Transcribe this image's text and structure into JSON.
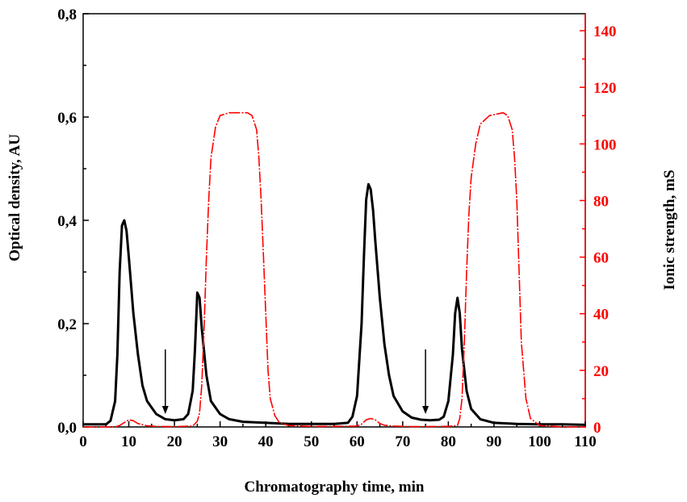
{
  "chart_data": {
    "type": "line",
    "title": "",
    "xlabel": "Chromatography time, min",
    "ylabel_left": "Optical density, AU",
    "ylabel_right": "Ionic strength,  mS",
    "xlim": [
      0,
      110
    ],
    "ylim_left": [
      0,
      0.8
    ],
    "ylim_right": [
      0,
      146
    ],
    "x_ticks": [
      "0",
      "10",
      "20",
      "30",
      "40",
      "50",
      "60",
      "70",
      "80",
      "90",
      "100",
      "110"
    ],
    "y_left_ticks": [
      "0,0",
      "0,2",
      "0,4",
      "0,6",
      "0,8"
    ],
    "y_right_ticks": [
      "0",
      "20",
      "40",
      "60",
      "80",
      "100",
      "120",
      "140"
    ],
    "grid": false,
    "series": [
      {
        "axis": "left",
        "color": "#000000",
        "x": [
          0,
          5,
          6,
          7,
          7.5,
          8,
          8.5,
          9,
          9.5,
          10,
          11,
          12,
          13,
          14,
          16,
          18,
          20,
          22,
          23,
          24,
          24.5,
          25,
          25.5,
          26,
          27,
          28,
          30,
          32,
          35,
          40,
          45,
          50,
          55,
          58,
          59,
          60,
          61,
          61.5,
          62,
          62.5,
          63,
          63.5,
          64,
          65,
          66,
          67,
          68,
          70,
          72,
          74,
          76,
          78,
          79,
          80,
          81,
          81.5,
          82,
          82.5,
          83,
          84,
          85,
          87,
          90,
          95,
          100,
          105,
          110
        ],
        "values": [
          0.005,
          0.005,
          0.012,
          0.05,
          0.14,
          0.3,
          0.39,
          0.4,
          0.38,
          0.33,
          0.22,
          0.14,
          0.08,
          0.05,
          0.025,
          0.015,
          0.013,
          0.015,
          0.025,
          0.07,
          0.15,
          0.26,
          0.25,
          0.19,
          0.1,
          0.05,
          0.025,
          0.015,
          0.01,
          0.008,
          0.006,
          0.006,
          0.006,
          0.008,
          0.02,
          0.06,
          0.2,
          0.33,
          0.44,
          0.47,
          0.46,
          0.42,
          0.36,
          0.25,
          0.16,
          0.1,
          0.06,
          0.03,
          0.018,
          0.014,
          0.013,
          0.014,
          0.02,
          0.05,
          0.14,
          0.22,
          0.25,
          0.22,
          0.15,
          0.07,
          0.035,
          0.015,
          0.008,
          0.006,
          0.005,
          0.005,
          0.004
        ]
      },
      {
        "axis": "right",
        "color": "#ff0000",
        "x": [
          0,
          7,
          8,
          9,
          10,
          11,
          12,
          14,
          16,
          20,
          24,
          25,
          25.5,
          26,
          26.5,
          27,
          27.5,
          28,
          29,
          30,
          32,
          36,
          37,
          38,
          38.5,
          39,
          39.5,
          40,
          40.5,
          41,
          42,
          43,
          45,
          50,
          55,
          60,
          61,
          62,
          63,
          64,
          65,
          66,
          68,
          72,
          80,
          82,
          82.5,
          83,
          83.5,
          84,
          84.5,
          85,
          86,
          87,
          89,
          92,
          93,
          94,
          94.5,
          95,
          95.5,
          96,
          97,
          98,
          100,
          105,
          110
        ],
        "values": [
          0,
          0,
          0.5,
          1.5,
          2.5,
          2.2,
          1.2,
          0.4,
          0.2,
          0.1,
          0.3,
          2,
          5,
          15,
          35,
          60,
          80,
          95,
          106,
          110,
          111,
          111,
          110,
          105,
          95,
          80,
          60,
          40,
          20,
          10,
          4,
          1.5,
          0.5,
          0.2,
          0.2,
          0.3,
          1,
          2.5,
          3,
          2.5,
          1.2,
          0.6,
          0.3,
          0.1,
          0.2,
          0.5,
          3,
          10,
          30,
          55,
          75,
          88,
          100,
          107,
          110,
          111,
          110,
          105,
          95,
          80,
          55,
          30,
          10,
          3,
          0.5,
          0,
          0
        ]
      }
    ],
    "arrows": [
      {
        "x": 18,
        "y_top": 0.15,
        "y_bottom": 0.025
      },
      {
        "x": 75,
        "y_top": 0.15,
        "y_bottom": 0.025
      }
    ]
  }
}
